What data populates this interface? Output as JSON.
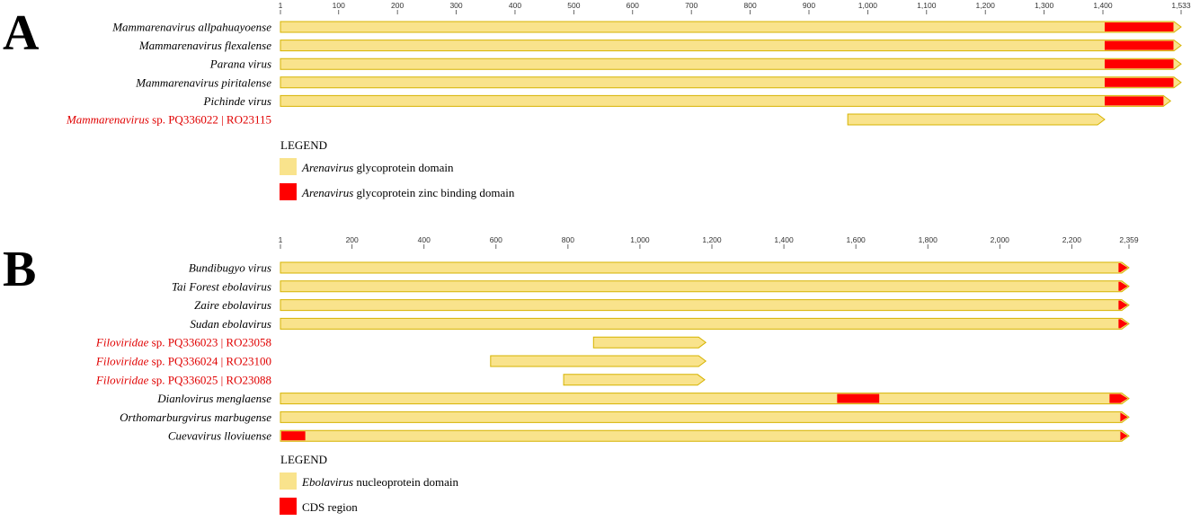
{
  "colors": {
    "domain_fill": "#f9e38c",
    "domain_stroke": "#d6b300",
    "highlight": "#ff0000",
    "label_red": "#e00000",
    "label_black": "#000000"
  },
  "panels": [
    {
      "letter": "A",
      "axis": {
        "max": 1533,
        "ticks": [
          1,
          100,
          200,
          300,
          400,
          500,
          600,
          700,
          800,
          900,
          1000,
          1100,
          1200,
          1300,
          1400,
          1533
        ],
        "tick_labels": [
          "1",
          "100",
          "200",
          "300",
          "400",
          "500",
          "600",
          "700",
          "800",
          "900",
          "1,000",
          "1,100",
          "1,200",
          "1,300",
          "1,400",
          "1,533"
        ]
      },
      "rows": [
        {
          "label_italic": "Mammarenavirus allpahuayoense",
          "label_rest": "",
          "red_label": false,
          "start": 1,
          "end": 1533,
          "highlights": [
            [
              1403,
              1520
            ]
          ]
        },
        {
          "label_italic": "Mammarenavirus flexalense",
          "label_rest": "",
          "red_label": false,
          "start": 1,
          "end": 1533,
          "highlights": [
            [
              1403,
              1520
            ]
          ]
        },
        {
          "label_italic": "Parana virus",
          "label_rest": "",
          "red_label": false,
          "start": 1,
          "end": 1533,
          "highlights": [
            [
              1403,
              1520
            ]
          ]
        },
        {
          "label_italic": "Mammarenavirus piritalense",
          "label_rest": "",
          "red_label": false,
          "start": 1,
          "end": 1533,
          "highlights": [
            [
              1403,
              1520
            ]
          ]
        },
        {
          "label_italic": "Pichinde virus",
          "label_rest": "",
          "red_label": false,
          "start": 1,
          "end": 1515,
          "highlights": [
            [
              1403,
              1503
            ]
          ]
        },
        {
          "label_italic": "Mammarenavirus",
          "label_rest": " sp. PQ336022 | RO23115",
          "red_label": true,
          "start": 966,
          "end": 1403,
          "highlights": []
        }
      ],
      "legend": {
        "title": "LEGEND",
        "items": [
          {
            "swatch": "domain",
            "italic": "Arenavirus",
            "rest": " glycoprotein domain"
          },
          {
            "swatch": "highlight",
            "italic": "Arenavirus",
            "rest": " glycoprotein zinc binding domain"
          }
        ]
      }
    },
    {
      "letter": "B",
      "axis": {
        "max": 2359,
        "ticks": [
          1,
          200,
          400,
          600,
          800,
          1000,
          1200,
          1400,
          1600,
          1800,
          2000,
          2200,
          2359
        ],
        "tick_labels": [
          "1",
          "200",
          "400",
          "600",
          "800",
          "1,000",
          "1,200",
          "1,400",
          "1,600",
          "1,800",
          "2,000",
          "2,200",
          "2,359"
        ]
      },
      "rows": [
        {
          "label_italic": "Bundibugyo virus",
          "label_rest": "",
          "red_label": false,
          "start": 1,
          "end": 2359,
          "highlights": [
            [
              2330,
              2359
            ]
          ]
        },
        {
          "label_italic": "Tai Forest ebolavirus",
          "label_rest": "",
          "red_label": false,
          "start": 1,
          "end": 2359,
          "highlights": [
            [
              2330,
              2359
            ]
          ]
        },
        {
          "label_italic": "Zaire ebolavirus",
          "label_rest": "",
          "red_label": false,
          "start": 1,
          "end": 2359,
          "highlights": [
            [
              2330,
              2359
            ]
          ]
        },
        {
          "label_italic": "Sudan ebolavirus",
          "label_rest": "",
          "red_label": false,
          "start": 1,
          "end": 2359,
          "highlights": [
            [
              2330,
              2359
            ]
          ]
        },
        {
          "label_italic": "Filoviridae",
          "label_rest": " sp. PQ336023 | RO23058",
          "red_label": true,
          "start": 871,
          "end": 1183,
          "highlights": []
        },
        {
          "label_italic": "Filoviridae",
          "label_rest": " sp. PQ336024 | RO23100",
          "red_label": true,
          "start": 585,
          "end": 1183,
          "highlights": []
        },
        {
          "label_italic": "Filoviridae",
          "label_rest": " sp. PQ336025 | RO23088",
          "red_label": true,
          "start": 788,
          "end": 1180,
          "highlights": []
        },
        {
          "label_italic": "Dianlovirus menglaense",
          "label_rest": "",
          "red_label": false,
          "start": 1,
          "end": 2359,
          "highlights": [
            [
              1548,
              1665
            ],
            [
              2305,
              2359
            ]
          ]
        },
        {
          "label_italic": "Orthomarburgvirus marbugense",
          "label_rest": "",
          "red_label": false,
          "start": 1,
          "end": 2359,
          "highlights": [
            [
              2335,
              2359
            ]
          ]
        },
        {
          "label_italic": "Cuevavirus lloviuense",
          "label_rest": "",
          "red_label": false,
          "start": 1,
          "end": 2359,
          "highlights": [
            [
              1,
              70
            ],
            [
              2335,
              2359
            ]
          ]
        }
      ],
      "legend": {
        "title": "LEGEND",
        "items": [
          {
            "swatch": "domain",
            "italic": "Ebolavirus",
            "rest": " nucleoprotein domain"
          },
          {
            "swatch": "highlight",
            "italic": "",
            "rest": "CDS region"
          }
        ]
      }
    }
  ]
}
